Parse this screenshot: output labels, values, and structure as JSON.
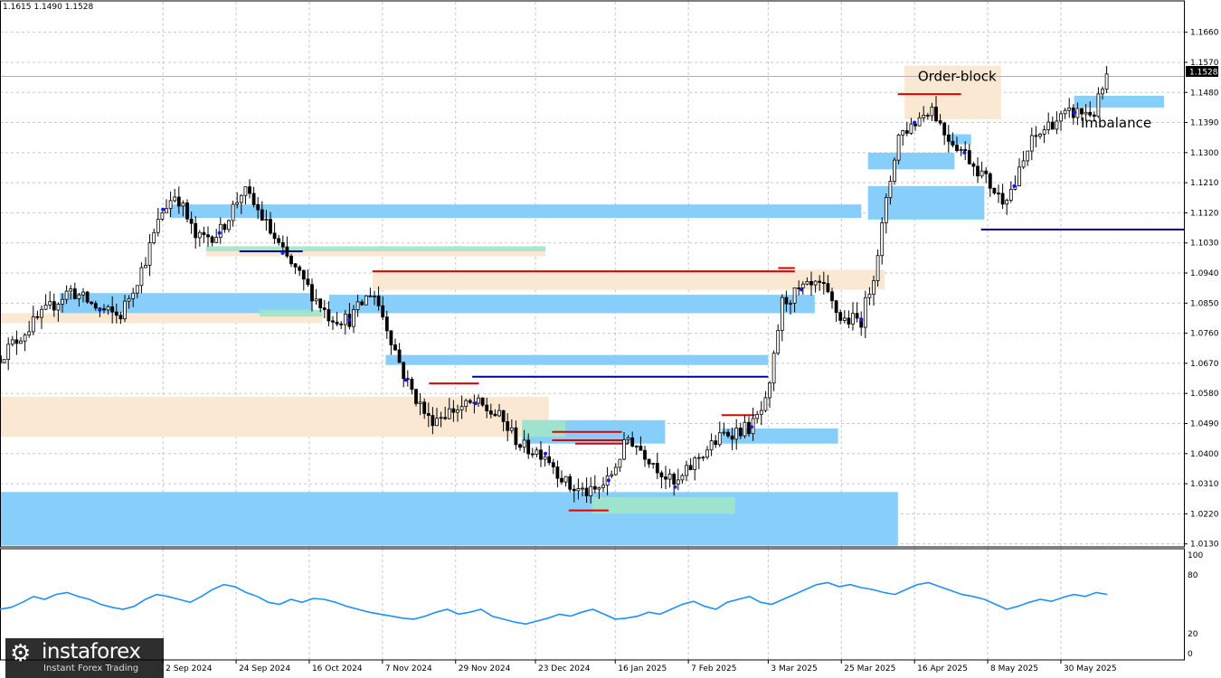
{
  "ohlc_text": "1.1615 1.1490 1.1528",
  "current_price_label": "1.1528",
  "brand": {
    "name": "instaforex",
    "tagline": "Instant Forex Trading",
    "logo_icon": "gear-logo-icon"
  },
  "colors": {
    "candle": "#000000",
    "grid": "#c8c8c8",
    "imbalance": "#87cefa",
    "orderblock": "#fae8d2",
    "green_zone": "#a0e6c8",
    "red_level": "#e00000",
    "blue_level": "#0000a0",
    "marker": "#1414ff",
    "oscillator": "#1e90ff"
  },
  "chart_data": [
    {
      "type": "candlestick",
      "title": "",
      "price_ticks": [
        "1.1660",
        "1.1570",
        "1.1480",
        "1.1390",
        "1.1300",
        "1.1210",
        "1.1120",
        "1.1030",
        "1.0940",
        "1.0850",
        "1.0760",
        "1.0670",
        "1.0580",
        "1.0490",
        "1.0400",
        "1.0310",
        "1.0220",
        "1.0130"
      ],
      "ylim": [
        1.0121,
        1.1751
      ],
      "date_ticks": [
        "2 Sep 2024",
        "24 Sep 2024",
        "16 Oct 2024",
        "7 Nov 2024",
        "29 Nov 2024",
        "23 Dec 2024",
        "16 Jan 2025",
        "7 Feb 2025",
        "3 Mar 2025",
        "25 Mar 2025",
        "16 Apr 2025",
        "8 May 2025",
        "30 May 2025"
      ],
      "close_path": [
        [
          "2024-07-15",
          1.069
        ],
        [
          "2024-07-25",
          1.079
        ],
        [
          "2024-08-05",
          1.089
        ],
        [
          "2024-08-14",
          1.083
        ],
        [
          "2024-08-20",
          1.081
        ],
        [
          "2024-08-27",
          1.096
        ],
        [
          "2024-09-02",
          1.113
        ],
        [
          "2024-09-06",
          1.118
        ],
        [
          "2024-09-12",
          1.104
        ],
        [
          "2024-09-19",
          1.106
        ],
        [
          "2024-09-26",
          1.119
        ],
        [
          "2024-10-01",
          1.112
        ],
        [
          "2024-10-08",
          1.1
        ],
        [
          "2024-10-16",
          1.089
        ],
        [
          "2024-10-22",
          1.081
        ],
        [
          "2024-10-28",
          1.08
        ],
        [
          "2024-11-04",
          1.089
        ],
        [
          "2024-11-08",
          1.079
        ],
        [
          "2024-11-14",
          1.062
        ],
        [
          "2024-11-21",
          1.05
        ],
        [
          "2024-11-28",
          1.053
        ],
        [
          "2024-12-05",
          1.055
        ],
        [
          "2024-12-12",
          1.051
        ],
        [
          "2024-12-19",
          1.042
        ],
        [
          "2024-12-26",
          1.04
        ],
        [
          "2025-01-02",
          1.03
        ],
        [
          "2025-01-09",
          1.028
        ],
        [
          "2025-01-14",
          1.032
        ],
        [
          "2025-01-20",
          1.045
        ],
        [
          "2025-01-27",
          1.038
        ],
        [
          "2025-02-03",
          1.03
        ],
        [
          "2025-02-10",
          1.039
        ],
        [
          "2025-02-18",
          1.046
        ],
        [
          "2025-02-26",
          1.048
        ],
        [
          "2025-03-03",
          1.056
        ],
        [
          "2025-03-07",
          1.085
        ],
        [
          "2025-03-13",
          1.089
        ],
        [
          "2025-03-19",
          1.09
        ],
        [
          "2025-03-25",
          1.08
        ],
        [
          "2025-03-31",
          1.08
        ],
        [
          "2025-04-04",
          1.095
        ],
        [
          "2025-04-11",
          1.135
        ],
        [
          "2025-04-16",
          1.139
        ],
        [
          "2025-04-21",
          1.144
        ],
        [
          "2025-04-25",
          1.136
        ],
        [
          "2025-05-01",
          1.13
        ],
        [
          "2025-05-06",
          1.124
        ],
        [
          "2025-05-12",
          1.116
        ],
        [
          "2025-05-16",
          1.12
        ],
        [
          "2025-05-21",
          1.133
        ],
        [
          "2025-05-27",
          1.139
        ],
        [
          "2025-06-03",
          1.142
        ],
        [
          "2025-06-09",
          1.142
        ],
        [
          "2025-06-13",
          1.1528
        ]
      ],
      "zones_imbalance": [
        [
          "2024-08-02",
          "2024-10-17",
          1.088,
          1.082
        ],
        [
          "2024-09-04",
          "2025-03-31",
          1.1145,
          1.1105
        ],
        [
          "2024-10-22",
          "2025-03-17",
          1.0875,
          1.082
        ],
        [
          "2024-11-08",
          "2025-03-03",
          1.0695,
          1.0665
        ],
        [
          "2024-12-19",
          "2025-01-31",
          1.05,
          1.043
        ],
        [
          "2025-02-17",
          "2025-03-24",
          1.0475,
          1.043
        ],
        [
          "2024-07-15",
          "2025-04-11",
          1.0285,
          1.0125
        ],
        [
          "2025-04-02",
          "2025-05-07",
          1.12,
          1.11
        ],
        [
          "2025-04-02",
          "2025-04-28",
          1.13,
          1.125
        ],
        [
          "2025-04-26",
          "2025-05-03",
          1.1355,
          1.1325
        ],
        [
          "2025-06-03",
          "2025-06-30",
          1.147,
          1.1435
        ]
      ],
      "zones_orderblock": [
        [
          "2024-07-15",
          "2024-10-20",
          1.082,
          1.079
        ],
        [
          "2024-09-15",
          "2024-12-26",
          1.101,
          1.099
        ],
        [
          "2024-11-04",
          "2025-04-07",
          1.095,
          1.089
        ],
        [
          "2024-07-15",
          "2024-12-27",
          1.057,
          1.045
        ],
        [
          "2025-04-13",
          "2025-05-12",
          1.156,
          1.14
        ]
      ],
      "zones_green": [
        [
          "2024-10-01",
          "2024-10-20",
          1.083,
          1.081
        ],
        [
          "2024-09-15",
          "2024-12-26",
          1.102,
          1.1005
        ],
        [
          "2024-12-19",
          "2025-01-01",
          1.05,
          1.045
        ],
        [
          "2025-01-09",
          "2025-02-21",
          1.027,
          1.022
        ]
      ],
      "levels_red": [
        [
          "2024-11-04",
          "2025-03-11",
          1.0945
        ],
        [
          "2024-11-21",
          "2024-12-06",
          1.061
        ],
        [
          "2024-12-28",
          "2025-01-18",
          1.0465
        ],
        [
          "2024-12-28",
          "2025-01-19",
          1.044
        ],
        [
          "2025-01-04",
          "2025-01-20",
          1.043
        ],
        [
          "2025-02-17",
          "2025-02-27",
          1.0515
        ],
        [
          "2025-03-06",
          "2025-03-11",
          1.0955
        ],
        [
          "2025-04-11",
          "2025-04-30",
          1.1475
        ],
        [
          "2025-01-02",
          "2025-01-14",
          1.023
        ]
      ],
      "levels_blue": [
        [
          "2024-09-25",
          "2024-10-14",
          1.1005
        ],
        [
          "2024-12-04",
          "2025-03-03",
          1.063
        ],
        [
          "2025-05-06",
          "2025-07-06",
          1.107
        ]
      ],
      "annotations": [
        "Order-block",
        "Imbalance"
      ]
    },
    {
      "type": "line",
      "title": "",
      "ylim": [
        0,
        100
      ],
      "ticks": [
        "100",
        "80",
        "20",
        "0"
      ],
      "values": [
        45,
        47,
        52,
        58,
        55,
        60,
        62,
        58,
        55,
        50,
        47,
        45,
        48,
        55,
        60,
        58,
        55,
        52,
        58,
        65,
        70,
        68,
        62,
        58,
        52,
        50,
        55,
        52,
        56,
        55,
        52,
        48,
        45,
        42,
        40,
        38,
        36,
        35,
        38,
        42,
        45,
        40,
        42,
        45,
        38,
        35,
        32,
        30,
        33,
        36,
        40,
        38,
        42,
        45,
        40,
        35,
        36,
        38,
        42,
        40,
        45,
        50,
        53,
        48,
        45,
        52,
        55,
        58,
        52,
        50,
        55,
        60,
        65,
        70,
        72,
        68,
        70,
        67,
        65,
        62,
        60,
        65,
        70,
        72,
        68,
        64,
        60,
        58,
        55,
        50,
        45,
        48,
        52,
        55,
        53,
        57,
        60,
        58,
        62,
        60
      ]
    }
  ]
}
